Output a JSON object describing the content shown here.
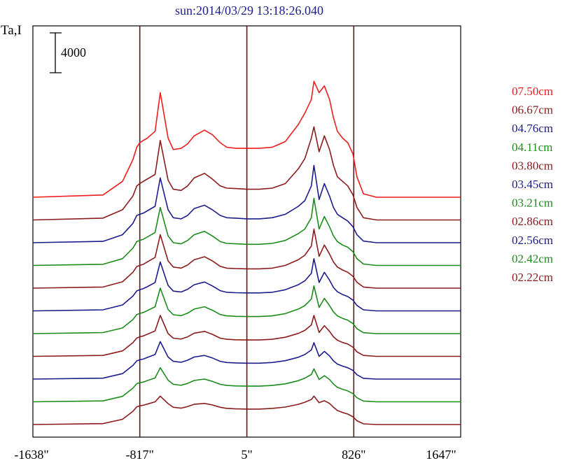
{
  "chart_data": {
    "type": "line",
    "title": "sun:2014/03/29 13:18:26.040",
    "ylabel": "Ta,I",
    "scale_bar": {
      "label": "4000",
      "value": 4000
    },
    "x_unit": "arcsec",
    "xlim": [
      -1638,
      1647
    ],
    "x_ticks": [
      {
        "value": -1638,
        "label": "-1638\""
      },
      {
        "value": -817,
        "label": "-817\""
      },
      {
        "value": 5,
        "label": "5\""
      },
      {
        "value": 826,
        "label": "826\""
      },
      {
        "value": 1647,
        "label": "1647\""
      }
    ],
    "vertical_lines": [
      -817,
      5,
      826
    ],
    "series_offset_step": 1000,
    "profile_x": [
      -1638,
      -1100,
      -950,
      -870,
      -840,
      -817,
      -790,
      -760,
      -700,
      -660,
      -600,
      -560,
      -500,
      -450,
      -400,
      -320,
      -260,
      -200,
      -150,
      -80,
      5,
      100,
      200,
      300,
      400,
      450,
      500,
      520,
      560,
      600,
      640,
      670,
      700,
      740,
      780,
      820,
      850,
      900,
      1000,
      1647
    ],
    "series": [
      {
        "name": "07.50cm",
        "color": "#ee1c1c",
        "offset": 10000,
        "y": [
          0,
          100,
          700,
          1650,
          2200,
          2400,
          2500,
          2600,
          2900,
          4600,
          2600,
          2100,
          2150,
          2350,
          2700,
          2950,
          2750,
          2400,
          2200,
          2150,
          2150,
          2150,
          2200,
          2450,
          3200,
          3700,
          4300,
          5100,
          4600,
          4900,
          4300,
          3500,
          2900,
          2600,
          2400,
          1900,
          900,
          150,
          0,
          0
        ]
      },
      {
        "name": "06.67cm",
        "color": "#8b1c1c",
        "offset": 9000,
        "y": [
          0,
          80,
          450,
          1050,
          1500,
          1600,
          1700,
          1800,
          2000,
          3500,
          1750,
          1350,
          1300,
          1500,
          1850,
          2050,
          1800,
          1500,
          1400,
          1380,
          1350,
          1350,
          1400,
          1600,
          2250,
          2700,
          3600,
          4100,
          3000,
          3700,
          3100,
          2400,
          1900,
          1700,
          1500,
          1100,
          550,
          100,
          0,
          0
        ]
      },
      {
        "name": "04.76cm",
        "color": "#1c1c8b",
        "offset": 8000,
        "y": [
          0,
          60,
          350,
          850,
          1200,
          1250,
          1300,
          1400,
          1600,
          2850,
          1450,
          1100,
          1050,
          1200,
          1500,
          1650,
          1450,
          1200,
          1100,
          1080,
          1050,
          1050,
          1100,
          1250,
          1600,
          1850,
          2500,
          3400,
          1900,
          2600,
          2050,
          1550,
          1250,
          1100,
          950,
          700,
          350,
          70,
          0,
          0
        ]
      },
      {
        "name": "04.11cm",
        "color": "#1c8b1c",
        "offset": 7000,
        "y": [
          0,
          50,
          300,
          760,
          1050,
          1100,
          1150,
          1250,
          1450,
          2550,
          1300,
          1000,
          950,
          1100,
          1350,
          1500,
          1300,
          1050,
          970,
          950,
          930,
          930,
          970,
          1100,
          1400,
          1600,
          2100,
          2950,
          1600,
          2150,
          1700,
          1300,
          1050,
          900,
          800,
          600,
          300,
          60,
          0,
          0
        ]
      },
      {
        "name": "03.80cm",
        "color": "#8b1c1c",
        "offset": 6000,
        "y": [
          0,
          50,
          280,
          700,
          950,
          1000,
          1050,
          1150,
          1350,
          2350,
          1200,
          930,
          880,
          1020,
          1250,
          1380,
          1200,
          960,
          880,
          860,
          850,
          850,
          880,
          1000,
          1250,
          1450,
          1850,
          2600,
          1400,
          1900,
          1500,
          1150,
          930,
          800,
          700,
          520,
          260,
          50,
          0,
          0
        ]
      },
      {
        "name": "03.45cm",
        "color": "#1c1c8b",
        "offset": 5000,
        "y": [
          0,
          45,
          260,
          650,
          880,
          930,
          980,
          1060,
          1250,
          2150,
          1120,
          870,
          830,
          950,
          1150,
          1270,
          1100,
          890,
          820,
          800,
          790,
          790,
          820,
          930,
          1150,
          1320,
          1650,
          2300,
          1250,
          1700,
          1350,
          1030,
          840,
          720,
          630,
          470,
          240,
          45,
          0,
          0
        ]
      },
      {
        "name": "03.21cm",
        "color": "#1c8b1c",
        "offset": 4000,
        "y": [
          0,
          45,
          250,
          620,
          840,
          890,
          930,
          1010,
          1180,
          2000,
          1060,
          830,
          790,
          900,
          1080,
          1180,
          1030,
          840,
          780,
          760,
          750,
          750,
          780,
          880,
          1080,
          1230,
          1520,
          2100,
          1150,
          1550,
          1230,
          950,
          780,
          670,
          590,
          440,
          220,
          40,
          0,
          0
        ]
      },
      {
        "name": "02.86cm",
        "color": "#8b1c1c",
        "offset": 3000,
        "y": [
          0,
          40,
          240,
          600,
          810,
          860,
          900,
          970,
          1120,
          1800,
          1000,
          800,
          760,
          860,
          1020,
          1100,
          970,
          800,
          750,
          730,
          720,
          720,
          750,
          840,
          1010,
          1140,
          1380,
          1800,
          1050,
          1350,
          1100,
          860,
          710,
          610,
          540,
          400,
          200,
          40,
          0,
          0
        ]
      },
      {
        "name": "02.56cm",
        "color": "#1c1c8b",
        "offset": 2000,
        "y": [
          0,
          40,
          240,
          600,
          800,
          850,
          880,
          950,
          1080,
          1650,
          970,
          780,
          740,
          830,
          970,
          1040,
          930,
          780,
          730,
          710,
          700,
          700,
          730,
          810,
          960,
          1080,
          1280,
          1600,
          1000,
          1220,
          1020,
          800,
          660,
          570,
          500,
          380,
          190,
          35,
          0,
          0
        ]
      },
      {
        "name": "02.42cm",
        "color": "#1c8b1c",
        "offset": 1000,
        "y": [
          0,
          40,
          240,
          600,
          800,
          840,
          870,
          930,
          1050,
          1500,
          950,
          770,
          730,
          810,
          940,
          1000,
          900,
          770,
          720,
          700,
          690,
          690,
          720,
          790,
          930,
          1040,
          1200,
          1450,
          980,
          1150,
          980,
          780,
          640,
          550,
          480,
          360,
          180,
          35,
          0,
          0
        ]
      },
      {
        "name": "02.22cm",
        "color": "#8b1c1c",
        "offset": 0,
        "y": [
          0,
          40,
          230,
          580,
          780,
          820,
          850,
          900,
          1000,
          1250,
          920,
          760,
          720,
          790,
          890,
          930,
          860,
          760,
          710,
          690,
          680,
          680,
          710,
          770,
          890,
          980,
          1100,
          1250,
          960,
          1050,
          930,
          760,
          620,
          530,
          460,
          340,
          170,
          30,
          0,
          0
        ]
      }
    ]
  },
  "colors": {
    "frame": "#000000",
    "vline": "#5a1a1a",
    "title": "#1c1c8b"
  }
}
